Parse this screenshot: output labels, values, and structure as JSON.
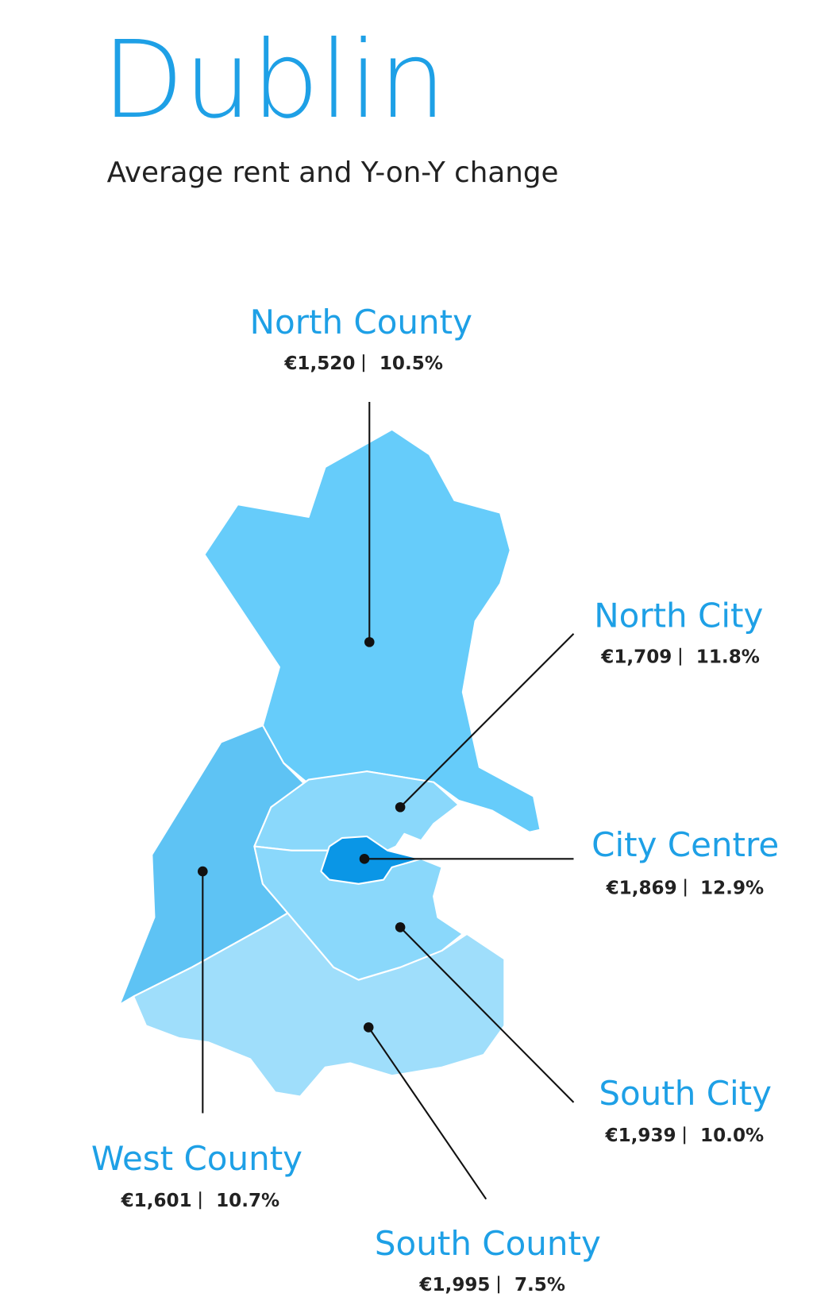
{
  "title": "Dublin",
  "subtitle": "Average rent and Y-on-Y change",
  "regions": [
    {
      "name": "North County",
      "rent": "€1,520",
      "change": "10.5%"
    },
    {
      "name": "North City",
      "rent": "€1,709",
      "change": "11.8%"
    },
    {
      "name": "City Centre",
      "rent": "€1,869",
      "change": "12.9%"
    },
    {
      "name": "South City",
      "rent": "€1,939",
      "change": "10.0%"
    },
    {
      "name": "West County",
      "rent": "€1,601",
      "change": "10.7%"
    },
    {
      "name": "South County",
      "rent": "€1,995",
      "change": "7.5%"
    }
  ]
}
